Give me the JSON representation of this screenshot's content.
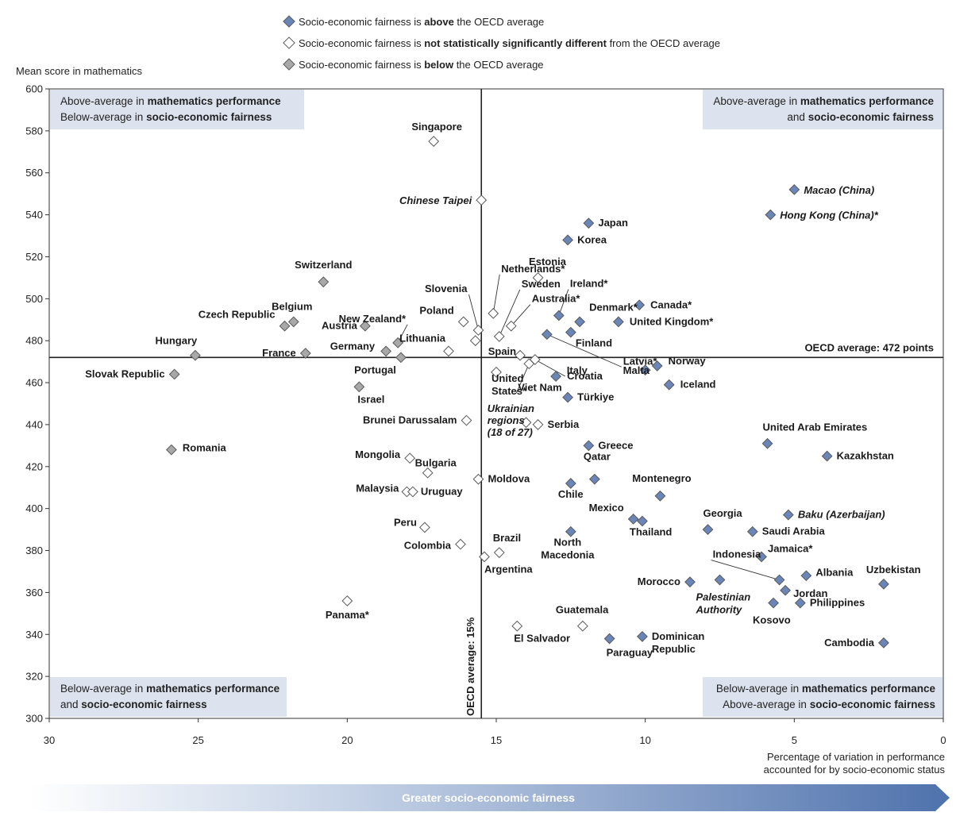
{
  "legend": {
    "items": [
      {
        "category": "above",
        "parts": [
          "Socio-economic fairness is ",
          "above",
          " the OECD average"
        ],
        "color": "#6a85b8"
      },
      {
        "category": "notsig",
        "parts": [
          "Socio-economic fairness is ",
          "not statistically significantly different",
          " from the OECD average"
        ],
        "color": "#ffffff"
      },
      {
        "category": "below",
        "parts": [
          "Socio-economic fairness is ",
          "below",
          " the OECD average"
        ],
        "color": "#a8a8a8"
      }
    ]
  },
  "quadrants": {
    "top_left": [
      [
        "Above-average in ",
        "mathematics performance"
      ],
      [
        "Below-average in ",
        "socio-economic fairness"
      ]
    ],
    "top_right": [
      [
        "Above-average in ",
        "mathematics performance"
      ],
      [
        "and ",
        "socio-economic fairness"
      ]
    ],
    "bottom_left": [
      [
        "Below-average in ",
        "mathematics performance"
      ],
      [
        "and ",
        "socio-economic fairness"
      ]
    ],
    "bottom_right": [
      [
        "Below-average in ",
        "mathematics performance"
      ],
      [
        "Above-average in ",
        "socio-economic fairness"
      ]
    ]
  },
  "arrow": {
    "label": "Greater socio-economic fairness"
  },
  "chart_data": {
    "type": "scatter",
    "ylabel": "Mean score in mathematics",
    "xlabel": [
      "Percentage of variation in performance",
      "accounted for by socio-economic status"
    ],
    "xlim": [
      30,
      0
    ],
    "ylim": [
      300,
      600
    ],
    "x_ticks": [
      30,
      25,
      20,
      15,
      10,
      5,
      0
    ],
    "y_ticks": [
      300,
      320,
      340,
      360,
      380,
      400,
      420,
      440,
      460,
      480,
      500,
      520,
      540,
      560,
      580,
      600
    ],
    "grid": false,
    "reference_lines": {
      "horizontal": {
        "value": 472,
        "label": "OECD average: 472 points"
      },
      "vertical": {
        "value": 15.5,
        "label": "OECD average: 15%"
      }
    },
    "colors": {
      "above": "#6a85b8",
      "notsig": "#ffffff",
      "below": "#a8a8a8",
      "stroke": "#5a5a5a",
      "quadrant_box": "#dde3ee"
    },
    "points": [
      {
        "label": "Singapore",
        "x": 17.1,
        "y": 575,
        "cat": "notsig"
      },
      {
        "label": "Chinese Taipei",
        "x": 15.5,
        "y": 547,
        "cat": "notsig",
        "italic": true
      },
      {
        "label": "Netherlands*",
        "x": 15.1,
        "y": 493,
        "cat": "notsig"
      },
      {
        "label": "Sweden",
        "x": 14.9,
        "y": 482,
        "cat": "notsig"
      },
      {
        "label": "Japan",
        "x": 11.9,
        "y": 536,
        "cat": "above"
      },
      {
        "label": "Korea",
        "x": 12.6,
        "y": 528,
        "cat": "above"
      },
      {
        "label": "Macao (China)",
        "x": 5.0,
        "y": 552,
        "cat": "above",
        "italic": true
      },
      {
        "label": "Hong Kong (China)*",
        "x": 5.8,
        "y": 540,
        "cat": "above",
        "italic": true
      },
      {
        "label": "Estonia",
        "x": 13.6,
        "y": 510,
        "cat": "notsig"
      },
      {
        "label": "Switzerland",
        "x": 20.8,
        "y": 508,
        "cat": "below"
      },
      {
        "label": "Slovenia",
        "x": 15.6,
        "y": 485,
        "cat": "notsig"
      },
      {
        "label": "Ireland*",
        "x": 12.9,
        "y": 492,
        "cat": "above"
      },
      {
        "label": "Australia*",
        "x": 14.5,
        "y": 487,
        "cat": "notsig"
      },
      {
        "label": "Denmark*",
        "x": 12.2,
        "y": 489,
        "cat": "above"
      },
      {
        "label": "Canada*",
        "x": 10.2,
        "y": 497,
        "cat": "above"
      },
      {
        "label": "United Kingdom*",
        "x": 10.9,
        "y": 489,
        "cat": "above"
      },
      {
        "label": "Belgium",
        "x": 21.8,
        "y": 489,
        "cat": "below"
      },
      {
        "label": "Czech Republic",
        "x": 22.1,
        "y": 487,
        "cat": "below"
      },
      {
        "label": "Austria",
        "x": 19.4,
        "y": 487,
        "cat": "below"
      },
      {
        "label": "New Zealand*",
        "x": 18.3,
        "y": 479,
        "cat": "below"
      },
      {
        "label": "Poland",
        "x": 16.1,
        "y": 489,
        "cat": "notsig"
      },
      {
        "label": "Finland",
        "x": 12.5,
        "y": 484,
        "cat": "above"
      },
      {
        "label": "Latvia*",
        "x": 13.3,
        "y": 483,
        "cat": "above"
      },
      {
        "label": "Lithuania",
        "x": 16.6,
        "y": 475,
        "cat": "notsig"
      },
      {
        "label": "Spain",
        "x": 15.7,
        "y": 480,
        "cat": "notsig"
      },
      {
        "label": "Hungary",
        "x": 25.1,
        "y": 473,
        "cat": "below"
      },
      {
        "label": "France",
        "x": 21.4,
        "y": 474,
        "cat": "below"
      },
      {
        "label": "Germany",
        "x": 18.7,
        "y": 475,
        "cat": "below"
      },
      {
        "label": "Portugal",
        "x": 18.2,
        "y": 472,
        "cat": "below"
      },
      {
        "label": "Italy",
        "x": 13.7,
        "y": 471,
        "cat": "notsig"
      },
      {
        "label": "Slovak Republic",
        "x": 25.8,
        "y": 464,
        "cat": "below"
      },
      {
        "label": "Israel",
        "x": 19.6,
        "y": 458,
        "cat": "below"
      },
      {
        "label": "United States*",
        "x": 15.0,
        "y": 465,
        "cat": "notsig"
      },
      {
        "label": "Viet Nam",
        "x": 13.9,
        "y": 469,
        "cat": "notsig"
      },
      {
        "label": "",
        "x": 14.2,
        "y": 473,
        "cat": "notsig"
      },
      {
        "label": "Croatia",
        "x": 13.0,
        "y": 463,
        "cat": "above"
      },
      {
        "label": "Malta",
        "x": 10.0,
        "y": 466,
        "cat": "above"
      },
      {
        "label": "Norway",
        "x": 9.6,
        "y": 468,
        "cat": "above"
      },
      {
        "label": "Iceland",
        "x": 9.2,
        "y": 459,
        "cat": "above"
      },
      {
        "label": "Türkiye",
        "x": 12.6,
        "y": 453,
        "cat": "above"
      },
      {
        "label": "Brunei Darussalam",
        "x": 16.0,
        "y": 442,
        "cat": "notsig"
      },
      {
        "label": "Serbia",
        "x": 13.6,
        "y": 440,
        "cat": "notsig"
      },
      {
        "label": "",
        "x": 14.0,
        "y": 441,
        "cat": "notsig"
      },
      {
        "label": "Greece",
        "x": 11.9,
        "y": 430,
        "cat": "above"
      },
      {
        "label": "United Arab Emirates",
        "x": 5.9,
        "y": 431,
        "cat": "above"
      },
      {
        "label": "Kazakhstan",
        "x": 3.9,
        "y": 425,
        "cat": "above"
      },
      {
        "label": "Romania",
        "x": 25.9,
        "y": 428,
        "cat": "below"
      },
      {
        "label": "Mongolia",
        "x": 17.9,
        "y": 424,
        "cat": "notsig"
      },
      {
        "label": "Bulgaria",
        "x": 17.3,
        "y": 417,
        "cat": "notsig"
      },
      {
        "label": "Moldova",
        "x": 15.6,
        "y": 414,
        "cat": "notsig"
      },
      {
        "label": "Qatar",
        "x": 11.7,
        "y": 414,
        "cat": "above"
      },
      {
        "label": "Chile",
        "x": 12.5,
        "y": 412,
        "cat": "above"
      },
      {
        "label": "Malaysia",
        "x": 18.0,
        "y": 408,
        "cat": "notsig"
      },
      {
        "label": "Uruguay",
        "x": 17.8,
        "y": 408,
        "cat": "notsig"
      },
      {
        "label": "Montenegro",
        "x": 9.5,
        "y": 406,
        "cat": "above"
      },
      {
        "label": "Baku (Azerbaijan)",
        "x": 5.2,
        "y": 397,
        "cat": "above",
        "italic": true
      },
      {
        "label": "Mexico",
        "x": 10.4,
        "y": 395,
        "cat": "above"
      },
      {
        "label": "Thailand",
        "x": 10.1,
        "y": 394,
        "cat": "above"
      },
      {
        "label": "Peru",
        "x": 17.4,
        "y": 391,
        "cat": "notsig"
      },
      {
        "label": "Georgia",
        "x": 7.9,
        "y": 390,
        "cat": "above"
      },
      {
        "label": "Saudi Arabia",
        "x": 6.4,
        "y": 389,
        "cat": "above"
      },
      {
        "label": "North Macedonia",
        "x": 12.5,
        "y": 389,
        "cat": "above"
      },
      {
        "label": "Colombia",
        "x": 16.2,
        "y": 383,
        "cat": "notsig"
      },
      {
        "label": "Brazil",
        "x": 14.9,
        "y": 379,
        "cat": "notsig"
      },
      {
        "label": "Argentina",
        "x": 15.4,
        "y": 377,
        "cat": "notsig"
      },
      {
        "label": "Jamaica*",
        "x": 6.1,
        "y": 377,
        "cat": "above"
      },
      {
        "label": "Albania",
        "x": 4.6,
        "y": 368,
        "cat": "above"
      },
      {
        "label": "Uzbekistan",
        "x": 2.0,
        "y": 364,
        "cat": "above"
      },
      {
        "label": "Indonesia",
        "x": 5.5,
        "y": 366,
        "cat": "above"
      },
      {
        "label": "Morocco",
        "x": 8.5,
        "y": 365,
        "cat": "above"
      },
      {
        "label": "Palestinian Authority",
        "x": 7.5,
        "y": 366,
        "cat": "above",
        "italic": true
      },
      {
        "label": "Jordan",
        "x": 5.3,
        "y": 361,
        "cat": "above"
      },
      {
        "label": "Kosovo",
        "x": 5.7,
        "y": 355,
        "cat": "above"
      },
      {
        "label": "Philippines",
        "x": 4.8,
        "y": 355,
        "cat": "above"
      },
      {
        "label": "Panama*",
        "x": 20.0,
        "y": 356,
        "cat": "notsig"
      },
      {
        "label": "El Salvador",
        "x": 14.3,
        "y": 344,
        "cat": "notsig"
      },
      {
        "label": "Guatemala",
        "x": 12.1,
        "y": 344,
        "cat": "notsig"
      },
      {
        "label": "Paraguay",
        "x": 11.2,
        "y": 338,
        "cat": "above"
      },
      {
        "label": "Dominican Republic",
        "x": 10.1,
        "y": 339,
        "cat": "above"
      },
      {
        "label": "Cambodia",
        "x": 2.0,
        "y": 336,
        "cat": "above"
      }
    ],
    "free_labels": [
      {
        "text": "Ukrainian regions (18 of 27)",
        "italic": true
      }
    ]
  }
}
